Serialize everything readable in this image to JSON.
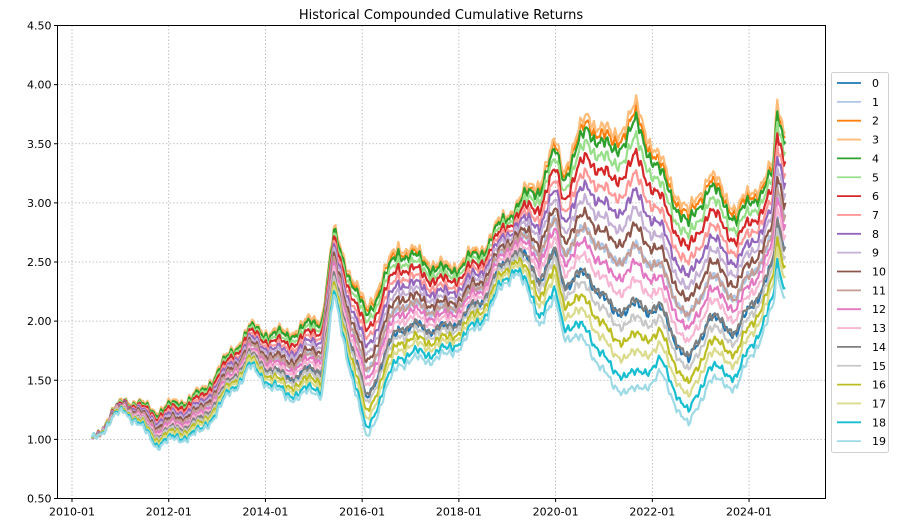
{
  "chart_data": {
    "type": "line",
    "title": "Historical Compounded Cumulative Returns",
    "xlabel": "",
    "ylabel": "",
    "ylim": [
      0.5,
      4.5
    ],
    "xlim": [
      "2009-10",
      "2025-06"
    ],
    "yticks": [
      "0.50",
      "1.00",
      "1.50",
      "2.00",
      "2.50",
      "3.00",
      "3.50",
      "4.00",
      "4.50"
    ],
    "xticks": [
      "2010-01",
      "2012-01",
      "2014-01",
      "2016-01",
      "2018-01",
      "2020-01",
      "2022-01",
      "2024-01"
    ],
    "grid": true,
    "legend_position": "right",
    "x": [
      "2010-06",
      "2011-02",
      "2011-10",
      "2012-09",
      "2013-09",
      "2014-06",
      "2015-03",
      "2015-06",
      "2016-02",
      "2016-10",
      "2017-10",
      "2018-06",
      "2019-03",
      "2019-09",
      "2020-01",
      "2020-03",
      "2020-09",
      "2021-03",
      "2021-09",
      "2022-03",
      "2022-10",
      "2023-03",
      "2023-10",
      "2024-07",
      "2024-08",
      "2024-10"
    ],
    "series": [
      {
        "name": "0",
        "color": "#1f77b4",
        "values": [
          1.0,
          1.28,
          1.04,
          1.16,
          1.71,
          1.52,
          1.6,
          2.37,
          1.33,
          1.95,
          1.93,
          2.15,
          2.62,
          2.36,
          2.56,
          2.32,
          2.39,
          2.08,
          2.12,
          2.09,
          1.64,
          2.03,
          1.9,
          2.46,
          2.84,
          2.62
        ]
      },
      {
        "name": "1",
        "color": "#aec7e8",
        "values": [
          1.0,
          1.3,
          1.1,
          1.23,
          1.78,
          1.63,
          1.73,
          2.48,
          1.55,
          2.15,
          2.08,
          2.28,
          2.73,
          2.6,
          2.83,
          2.6,
          2.78,
          2.5,
          2.6,
          2.45,
          2.0,
          2.38,
          2.2,
          2.7,
          3.13,
          2.9
        ]
      },
      {
        "name": "2",
        "color": "#ff7f0e",
        "values": [
          1.0,
          1.35,
          1.24,
          1.39,
          1.94,
          1.88,
          2.03,
          2.73,
          2.07,
          2.62,
          2.43,
          2.58,
          2.98,
          3.16,
          3.46,
          3.26,
          3.69,
          3.49,
          3.73,
          3.3,
          2.85,
          3.2,
          2.91,
          3.26,
          3.81,
          3.56
        ]
      },
      {
        "name": "3",
        "color": "#ffbb78",
        "values": [
          1.0,
          1.35,
          1.25,
          1.4,
          1.95,
          1.9,
          2.05,
          2.75,
          2.1,
          2.65,
          2.45,
          2.6,
          3.0,
          3.2,
          3.5,
          3.3,
          3.75,
          3.55,
          3.8,
          3.35,
          2.9,
          3.25,
          2.95,
          3.3,
          3.85,
          3.6
        ]
      },
      {
        "name": "4",
        "color": "#2ca02c",
        "values": [
          1.0,
          1.34,
          1.23,
          1.38,
          1.93,
          1.87,
          2.01,
          2.72,
          2.03,
          2.59,
          2.41,
          2.56,
          2.97,
          3.13,
          3.42,
          3.22,
          3.63,
          3.42,
          3.66,
          3.24,
          2.79,
          3.15,
          2.86,
          3.23,
          3.76,
          3.52
        ]
      },
      {
        "name": "5",
        "color": "#98df8a",
        "values": [
          1.0,
          1.34,
          1.21,
          1.36,
          1.91,
          1.83,
          1.97,
          2.68,
          1.97,
          2.53,
          2.36,
          2.52,
          2.93,
          3.06,
          3.34,
          3.13,
          3.52,
          3.3,
          3.51,
          3.13,
          2.68,
          3.04,
          2.77,
          3.16,
          3.68,
          3.43
        ]
      },
      {
        "name": "6",
        "color": "#d62728",
        "values": [
          1.0,
          1.33,
          1.2,
          1.34,
          1.89,
          1.8,
          1.93,
          2.65,
          1.9,
          2.47,
          2.32,
          2.48,
          2.9,
          2.98,
          3.26,
          3.05,
          3.4,
          3.17,
          3.37,
          3.03,
          2.58,
          2.94,
          2.68,
          3.08,
          3.59,
          3.35
        ]
      },
      {
        "name": "7",
        "color": "#ff9896",
        "values": [
          1.0,
          1.32,
          1.18,
          1.31,
          1.86,
          1.76,
          1.89,
          2.61,
          1.83,
          2.4,
          2.26,
          2.44,
          2.86,
          2.9,
          3.16,
          2.95,
          3.26,
          3.03,
          3.2,
          2.9,
          2.45,
          2.81,
          2.58,
          3.0,
          3.49,
          3.25
        ]
      },
      {
        "name": "8",
        "color": "#9467bd",
        "values": [
          1.0,
          1.32,
          1.16,
          1.29,
          1.84,
          1.73,
          1.85,
          2.58,
          1.76,
          2.34,
          2.22,
          2.4,
          2.83,
          2.83,
          3.08,
          2.87,
          3.15,
          2.9,
          3.06,
          2.79,
          2.34,
          2.71,
          2.49,
          2.93,
          3.4,
          3.17
        ]
      },
      {
        "name": "9",
        "color": "#c5b0d5",
        "values": [
          1.0,
          1.31,
          1.14,
          1.27,
          1.82,
          1.7,
          1.81,
          2.55,
          1.69,
          2.28,
          2.17,
          2.36,
          2.8,
          2.76,
          3.0,
          2.78,
          3.03,
          2.77,
          2.91,
          2.68,
          2.23,
          2.6,
          2.4,
          2.86,
          3.31,
          3.08
        ]
      },
      {
        "name": "10",
        "color": "#8c564b",
        "values": [
          1.0,
          1.31,
          1.12,
          1.25,
          1.8,
          1.66,
          1.77,
          2.51,
          1.63,
          2.22,
          2.13,
          2.32,
          2.76,
          2.68,
          2.92,
          2.7,
          2.91,
          2.65,
          2.77,
          2.58,
          2.13,
          2.5,
          2.31,
          2.78,
          3.23,
          3.0
        ]
      },
      {
        "name": "11",
        "color": "#c49c94",
        "values": [
          1.0,
          1.3,
          1.1,
          1.23,
          1.78,
          1.63,
          1.73,
          2.48,
          1.55,
          2.15,
          2.08,
          2.28,
          2.73,
          2.6,
          2.83,
          2.6,
          2.78,
          2.5,
          2.6,
          2.45,
          2.0,
          2.38,
          2.2,
          2.7,
          3.13,
          2.9
        ]
      },
      {
        "name": "12",
        "color": "#e377c2",
        "values": [
          1.0,
          1.29,
          1.08,
          1.2,
          1.75,
          1.59,
          1.69,
          2.44,
          1.48,
          2.09,
          2.03,
          2.24,
          2.69,
          2.53,
          2.74,
          2.52,
          2.66,
          2.37,
          2.46,
          2.34,
          1.89,
          2.27,
          2.11,
          2.63,
          3.04,
          2.82
        ]
      },
      {
        "name": "13",
        "color": "#f7b6d2",
        "values": [
          1.0,
          1.29,
          1.06,
          1.18,
          1.73,
          1.56,
          1.65,
          2.41,
          1.42,
          2.03,
          1.99,
          2.2,
          2.66,
          2.46,
          2.66,
          2.43,
          2.54,
          2.25,
          2.31,
          2.23,
          1.78,
          2.17,
          2.02,
          2.56,
          2.95,
          2.73
        ]
      },
      {
        "name": "14",
        "color": "#7f7f7f",
        "values": [
          1.0,
          1.28,
          1.04,
          1.16,
          1.71,
          1.52,
          1.6,
          2.37,
          1.34,
          1.96,
          1.93,
          2.15,
          2.62,
          2.37,
          2.57,
          2.33,
          2.4,
          2.1,
          2.14,
          2.11,
          1.66,
          2.04,
          1.92,
          2.47,
          2.85,
          2.63
        ]
      },
      {
        "name": "15",
        "color": "#c7c7c7",
        "values": [
          1.0,
          1.28,
          1.03,
          1.14,
          1.69,
          1.49,
          1.56,
          2.34,
          1.28,
          1.9,
          1.89,
          2.11,
          2.59,
          2.3,
          2.49,
          2.25,
          2.29,
          1.98,
          2.0,
          2.0,
          1.55,
          1.94,
          1.83,
          2.4,
          2.76,
          2.55
        ]
      },
      {
        "name": "16",
        "color": "#bcbd22",
        "values": [
          1.0,
          1.27,
          1.01,
          1.12,
          1.67,
          1.45,
          1.52,
          2.3,
          1.21,
          1.84,
          1.84,
          2.07,
          2.55,
          2.23,
          2.41,
          2.17,
          2.17,
          1.85,
          1.86,
          1.89,
          1.44,
          1.83,
          1.74,
          2.33,
          2.68,
          2.47
        ]
      },
      {
        "name": "17",
        "color": "#dbdb8d",
        "values": [
          1.0,
          1.26,
          0.99,
          1.1,
          1.65,
          1.42,
          1.48,
          2.27,
          1.14,
          1.78,
          1.8,
          2.03,
          2.52,
          2.16,
          2.33,
          2.08,
          2.05,
          1.72,
          1.71,
          1.78,
          1.33,
          1.73,
          1.65,
          2.26,
          2.59,
          2.38
        ]
      },
      {
        "name": "18",
        "color": "#17becf",
        "values": [
          1.0,
          1.26,
          0.97,
          1.07,
          1.62,
          1.38,
          1.44,
          2.23,
          1.07,
          1.71,
          1.75,
          1.99,
          2.48,
          2.07,
          2.23,
          1.98,
          1.92,
          1.58,
          1.54,
          1.66,
          1.21,
          1.61,
          1.54,
          2.17,
          2.49,
          2.28
        ]
      },
      {
        "name": "19",
        "color": "#9edae5",
        "values": [
          1.0,
          1.25,
          0.95,
          1.05,
          1.6,
          1.35,
          1.4,
          2.2,
          1.0,
          1.65,
          1.7,
          1.95,
          2.45,
          2.0,
          2.15,
          1.9,
          1.8,
          1.45,
          1.4,
          1.55,
          1.1,
          1.5,
          1.45,
          2.1,
          2.4,
          2.2
        ]
      }
    ]
  }
}
